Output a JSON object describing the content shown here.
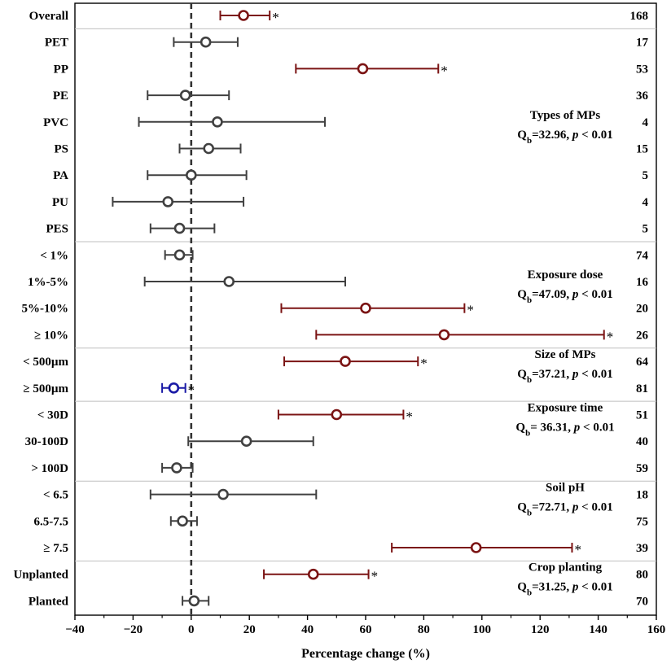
{
  "chart_data": {
    "type": "forest",
    "xlabel": "Percentage change (%)",
    "xlim": [
      -40,
      160
    ],
    "xticks": [
      -40,
      -20,
      0,
      20,
      40,
      60,
      80,
      100,
      120,
      140,
      160
    ],
    "reference_line": 0,
    "colors": {
      "significant_positive": "#7b1414",
      "significant_negative": "#1a1aa6",
      "not_significant": "#404040"
    },
    "rows": [
      {
        "label": "Overall",
        "estimate": 18,
        "lower": 10,
        "upper": 27,
        "n": 168,
        "star": "*",
        "kind": "significant_positive"
      },
      {
        "label": "PET",
        "estimate": 5,
        "lower": -6,
        "upper": 16,
        "n": 17,
        "star": "",
        "kind": "not_significant"
      },
      {
        "label": "PP",
        "estimate": 59,
        "lower": 36,
        "upper": 85,
        "n": 53,
        "star": "*",
        "kind": "significant_positive"
      },
      {
        "label": "PE",
        "estimate": -2,
        "lower": -15,
        "upper": 13,
        "n": 36,
        "star": "",
        "kind": "not_significant"
      },
      {
        "label": "PVC",
        "estimate": 9,
        "lower": -18,
        "upper": 46,
        "n": 4,
        "star": "",
        "kind": "not_significant"
      },
      {
        "label": "PS",
        "estimate": 6,
        "lower": -4,
        "upper": 17,
        "n": 15,
        "star": "",
        "kind": "not_significant"
      },
      {
        "label": "PA",
        "estimate": 0,
        "lower": -15,
        "upper": 19,
        "n": 5,
        "star": "",
        "kind": "not_significant"
      },
      {
        "label": "PU",
        "estimate": -8,
        "lower": -27,
        "upper": 18,
        "n": 4,
        "star": "",
        "kind": "not_significant"
      },
      {
        "label": "PES",
        "estimate": -4,
        "lower": -14,
        "upper": 8,
        "n": 5,
        "star": "",
        "kind": "not_significant"
      },
      {
        "label": "< 1%",
        "estimate": -4,
        "lower": -9,
        "upper": 0.5,
        "n": 74,
        "star": "",
        "kind": "not_significant"
      },
      {
        "label": "1%-5%",
        "estimate": 13,
        "lower": -16,
        "upper": 53,
        "n": 16,
        "star": "",
        "kind": "not_significant"
      },
      {
        "label": "5%-10%",
        "estimate": 60,
        "lower": 31,
        "upper": 94,
        "n": 20,
        "star": "*",
        "kind": "significant_positive"
      },
      {
        "label": "≥ 10%",
        "estimate": 87,
        "lower": 43,
        "upper": 142,
        "n": 26,
        "star": "*",
        "kind": "significant_positive"
      },
      {
        "label": "< 500µm",
        "estimate": 53,
        "lower": 32,
        "upper": 78,
        "n": 64,
        "star": "*",
        "kind": "significant_positive"
      },
      {
        "label": "≥ 500µm",
        "estimate": -6,
        "lower": -10,
        "upper": -2,
        "n": 81,
        "star": "*",
        "kind": "significant_negative"
      },
      {
        "label": "< 30D",
        "estimate": 50,
        "lower": 30,
        "upper": 73,
        "n": 51,
        "star": "*",
        "kind": "significant_positive"
      },
      {
        "label": "30-100D",
        "estimate": 19,
        "lower": -1,
        "upper": 42,
        "n": 40,
        "star": "",
        "kind": "not_significant"
      },
      {
        "label": "> 100D",
        "estimate": -5,
        "lower": -10,
        "upper": 0.5,
        "n": 59,
        "star": "",
        "kind": "not_significant"
      },
      {
        "label": "< 6.5",
        "estimate": 11,
        "lower": -14,
        "upper": 43,
        "n": 18,
        "star": "",
        "kind": "not_significant"
      },
      {
        "label": "6.5-7.5",
        "estimate": -3,
        "lower": -7,
        "upper": 2,
        "n": 75,
        "star": "",
        "kind": "not_significant"
      },
      {
        "label": "≥ 7.5",
        "estimate": 98,
        "lower": 69,
        "upper": 131,
        "n": 39,
        "star": "*",
        "kind": "significant_positive"
      },
      {
        "label": "Unplanted",
        "estimate": 42,
        "lower": 25,
        "upper": 61,
        "n": 80,
        "star": "*",
        "kind": "significant_positive"
      },
      {
        "label": "Planted",
        "estimate": 1,
        "lower": -3,
        "upper": 6,
        "n": 70,
        "star": "",
        "kind": "not_significant"
      }
    ],
    "separators_after_rows": [
      0,
      8,
      12,
      14,
      17,
      20
    ],
    "groups": [
      {
        "title": "Types of MPs",
        "stat_prefix": "Q",
        "stat_sub": "b",
        "stat_value": "=32.96, ",
        "stat_p": "p",
        "stat_tail": " < 0.01",
        "anchor_row": 4
      },
      {
        "title": "Exposure dose",
        "stat_prefix": "Q",
        "stat_sub": "b",
        "stat_value": "=47.09, ",
        "stat_p": "p",
        "stat_tail": " < 0.01",
        "anchor_row": 10
      },
      {
        "title": "Size of MPs",
        "stat_prefix": "Q",
        "stat_sub": "b",
        "stat_value": "=37.21, ",
        "stat_p": "p",
        "stat_tail": " < 0.01",
        "anchor_row": 13
      },
      {
        "title": "Exposure time",
        "stat_prefix": "Q",
        "stat_sub": "b",
        "stat_value": "= 36.31, ",
        "stat_p": "p",
        "stat_tail": " < 0.01",
        "anchor_row": 15
      },
      {
        "title": "Soil pH",
        "stat_prefix": "Q",
        "stat_sub": "b",
        "stat_value": "=72.71, ",
        "stat_p": "p",
        "stat_tail": " < 0.01",
        "anchor_row": 18
      },
      {
        "title": "Crop planting",
        "stat_prefix": "Q",
        "stat_sub": "b",
        "stat_value": "=31.25, ",
        "stat_p": "p",
        "stat_tail": " < 0.01",
        "anchor_row": 21
      }
    ]
  }
}
